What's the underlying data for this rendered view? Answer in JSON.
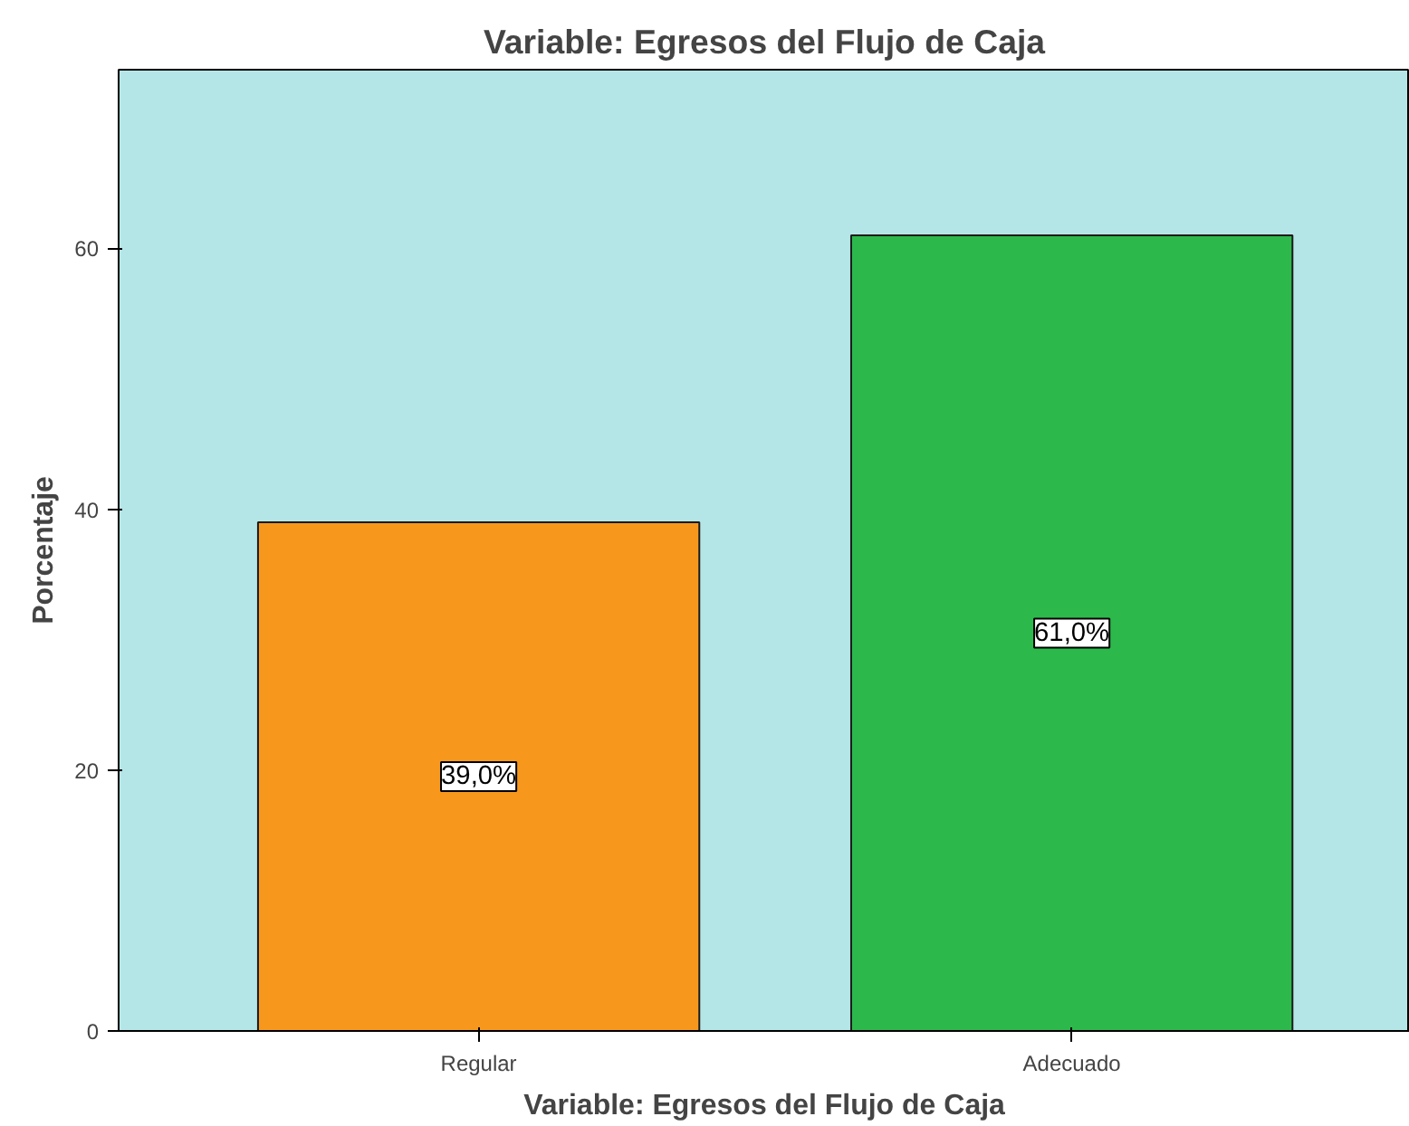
{
  "chart_data": {
    "type": "bar",
    "title": "Variable: Egresos del Flujo de Caja",
    "xlabel": "Variable: Egresos del Flujo de Caja",
    "ylabel": "Porcentaje",
    "categories": [
      "Regular",
      "Adecuado"
    ],
    "values": [
      39.0,
      61.0
    ],
    "colors": [
      "#f7981d",
      "#2db84b"
    ],
    "value_labels": [
      "39,0%",
      "61,0%"
    ],
    "ylim": [
      0,
      73.7
    ],
    "yticks": [
      0,
      20,
      40,
      60
    ],
    "grid": false
  }
}
